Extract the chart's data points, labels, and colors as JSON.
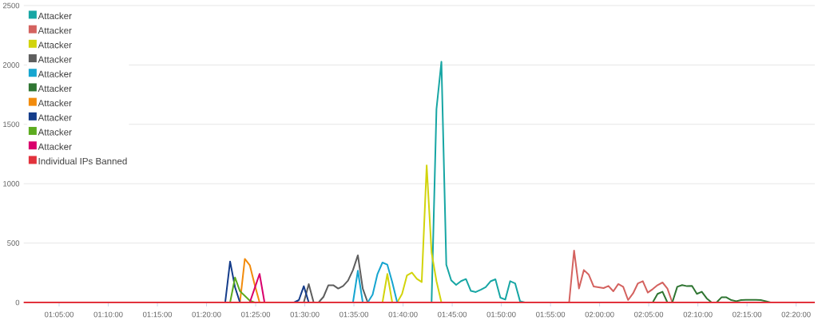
{
  "chart_data": {
    "type": "line",
    "xlim": [
      1.0233,
      2.365
    ],
    "ylim": [
      0,
      2500
    ],
    "xticks": [
      {
        "value": 1.0833,
        "label": "01:05:00"
      },
      {
        "value": 1.1667,
        "label": "01:10:00"
      },
      {
        "value": 1.25,
        "label": "01:15:00"
      },
      {
        "value": 1.3333,
        "label": "01:20:00"
      },
      {
        "value": 1.4167,
        "label": "01:25:00"
      },
      {
        "value": 1.5,
        "label": "01:30:00"
      },
      {
        "value": 1.5833,
        "label": "01:35:00"
      },
      {
        "value": 1.6667,
        "label": "01:40:00"
      },
      {
        "value": 1.75,
        "label": "01:45:00"
      },
      {
        "value": 1.8333,
        "label": "01:50:00"
      },
      {
        "value": 1.9167,
        "label": "01:55:00"
      },
      {
        "value": 2.0,
        "label": "02:00:00"
      },
      {
        "value": 2.0833,
        "label": "02:05:00"
      },
      {
        "value": 2.1667,
        "label": "02:10:00"
      },
      {
        "value": 2.25,
        "label": "02:15:00"
      },
      {
        "value": 2.3333,
        "label": "02:20:00"
      }
    ],
    "yticks": [
      0,
      500,
      1000,
      1500,
      2000,
      2500
    ],
    "grid": "y",
    "legend": "top left",
    "line_style": "solid",
    "series": [
      {
        "name": "Attacker",
        "color": "#17a6a4",
        "x": [
          1.715,
          1.7233,
          1.7317,
          1.74,
          1.7483,
          1.7567,
          1.765,
          1.7733,
          1.7817,
          1.79,
          1.7983,
          1.8067,
          1.815,
          1.8233,
          1.8317,
          1.84,
          1.8483,
          1.8567,
          1.865,
          1.8733
        ],
        "values": [
          0,
          1628,
          2027,
          318,
          187,
          148,
          180,
          197,
          97,
          88,
          107,
          128,
          178,
          195,
          40,
          24,
          179,
          161,
          11,
          0
        ]
      },
      {
        "name": "Attacker",
        "color": "#d4625f",
        "x": [
          1.9483,
          1.9567,
          1.965,
          1.9733,
          1.9817,
          1.99,
          1.9983,
          2.0067,
          2.015,
          2.0233,
          2.0317,
          2.04,
          2.0483,
          2.0567,
          2.065,
          2.0733,
          2.0817,
          2.09,
          2.0983,
          2.1067,
          2.115,
          2.1233
        ],
        "values": [
          0,
          437,
          117,
          273,
          233,
          134,
          128,
          121,
          139,
          94,
          155,
          132,
          20,
          76,
          161,
          179,
          83,
          112,
          146,
          168,
          117,
          0
        ]
      },
      {
        "name": "Attacker",
        "color": "#d2d40c",
        "x": [
          1.6317,
          1.64,
          1.6483,
          1.6567,
          1.665,
          1.6733,
          1.6817,
          1.69,
          1.6983,
          1.7067,
          1.715,
          1.7233,
          1.7317
        ],
        "values": [
          0,
          240,
          0,
          0,
          72,
          228,
          251,
          199,
          172,
          1154,
          420,
          180,
          0
        ]
      },
      {
        "name": "Attacker",
        "color": "#5e5e5e",
        "x": [
          1.4983,
          1.5067,
          1.515,
          1.5233,
          1.5317,
          1.54,
          1.5483,
          1.5567,
          1.565,
          1.5733,
          1.5817,
          1.59,
          1.5983,
          1.6067
        ],
        "values": [
          0,
          155,
          0,
          0,
          47,
          145,
          145,
          117,
          139,
          184,
          273,
          397,
          117,
          0
        ]
      },
      {
        "name": "Attacker",
        "color": "#16a5d0",
        "x": [
          1.5817,
          1.59,
          1.5983,
          1.6067,
          1.615,
          1.6233,
          1.6317,
          1.64,
          1.6483,
          1.6567
        ],
        "values": [
          0,
          267,
          0,
          0,
          65,
          240,
          336,
          318,
          172,
          0
        ]
      },
      {
        "name": "Attacker",
        "color": "#2f7532",
        "x": [
          2.09,
          2.0983,
          2.1067,
          2.115,
          2.1233,
          2.1317,
          2.14,
          2.1483,
          2.1567,
          2.165,
          2.1733,
          2.1817,
          2.19,
          2.1983,
          2.2067,
          2.215,
          2.2233,
          2.2317,
          2.24,
          2.2483,
          2.2567,
          2.265,
          2.2733,
          2.2817,
          2.29
        ],
        "values": [
          0,
          72,
          90,
          0,
          0,
          132,
          146,
          137,
          139,
          72,
          90,
          34,
          0,
          0,
          43,
          43,
          20,
          11,
          20,
          22,
          22,
          22,
          20,
          11,
          0
        ]
      },
      {
        "name": "Attacker",
        "color": "#f28b0c",
        "x": [
          1.39,
          1.3983,
          1.4067,
          1.415,
          1.4233
        ],
        "values": [
          0,
          367,
          314,
          150,
          0
        ]
      },
      {
        "name": "Attacker",
        "color": "#143c8a",
        "x": [
          1.365,
          1.3733,
          1.3817,
          1.39,
          1.4817,
          1.49,
          1.4983,
          1.5067
        ],
        "values": [
          0,
          345,
          128,
          0,
          0,
          20,
          137,
          0
        ]
      },
      {
        "name": "Attacker",
        "color": "#5cab1f",
        "x": [
          1.3733,
          1.3817,
          1.39,
          1.3983,
          1.4067,
          1.415,
          1.4317
        ],
        "values": [
          0,
          210,
          95,
          55,
          15,
          0,
          0
        ]
      },
      {
        "name": "Attacker",
        "color": "#d9006c",
        "x": [
          1.4067,
          1.415,
          1.4233,
          1.4317
        ],
        "values": [
          0,
          120,
          240,
          0
        ]
      },
      {
        "name": "Individual IPs Banned",
        "color": "#e2323c",
        "x": [
          1.0233,
          1.19,
          1.3567,
          1.5233,
          1.69,
          1.8567,
          2.0233,
          2.19,
          2.365
        ],
        "values": [
          0,
          0,
          0,
          0,
          0,
          0,
          0,
          0,
          0
        ]
      }
    ]
  }
}
